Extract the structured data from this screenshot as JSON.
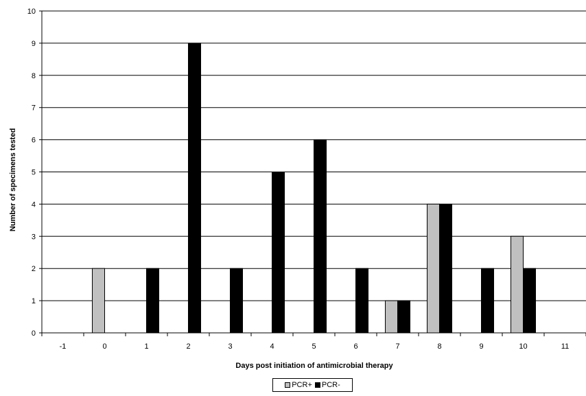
{
  "chart_data": {
    "type": "bar",
    "xlabel": "Days post initiation of antimicrobial therapy",
    "ylabel": "Number of specimens tested",
    "categories": [
      "-1",
      "0",
      "1",
      "2",
      "3",
      "4",
      "5",
      "6",
      "7",
      "8",
      "9",
      "10",
      "11"
    ],
    "ylim": [
      0,
      10
    ],
    "yticks": [
      0,
      1,
      2,
      3,
      4,
      5,
      6,
      7,
      8,
      9,
      10
    ],
    "grid": true,
    "legend_position": "bottom",
    "series": [
      {
        "name": "PCR+",
        "color": "#c0c0c0",
        "values": [
          0,
          2,
          0,
          0,
          0,
          0,
          0,
          0,
          1,
          4,
          0,
          3,
          0
        ]
      },
      {
        "name": "PCR-",
        "color": "#000000",
        "values": [
          0,
          0,
          2,
          9,
          2,
          5,
          6,
          2,
          1,
          4,
          2,
          2,
          0
        ]
      }
    ]
  }
}
